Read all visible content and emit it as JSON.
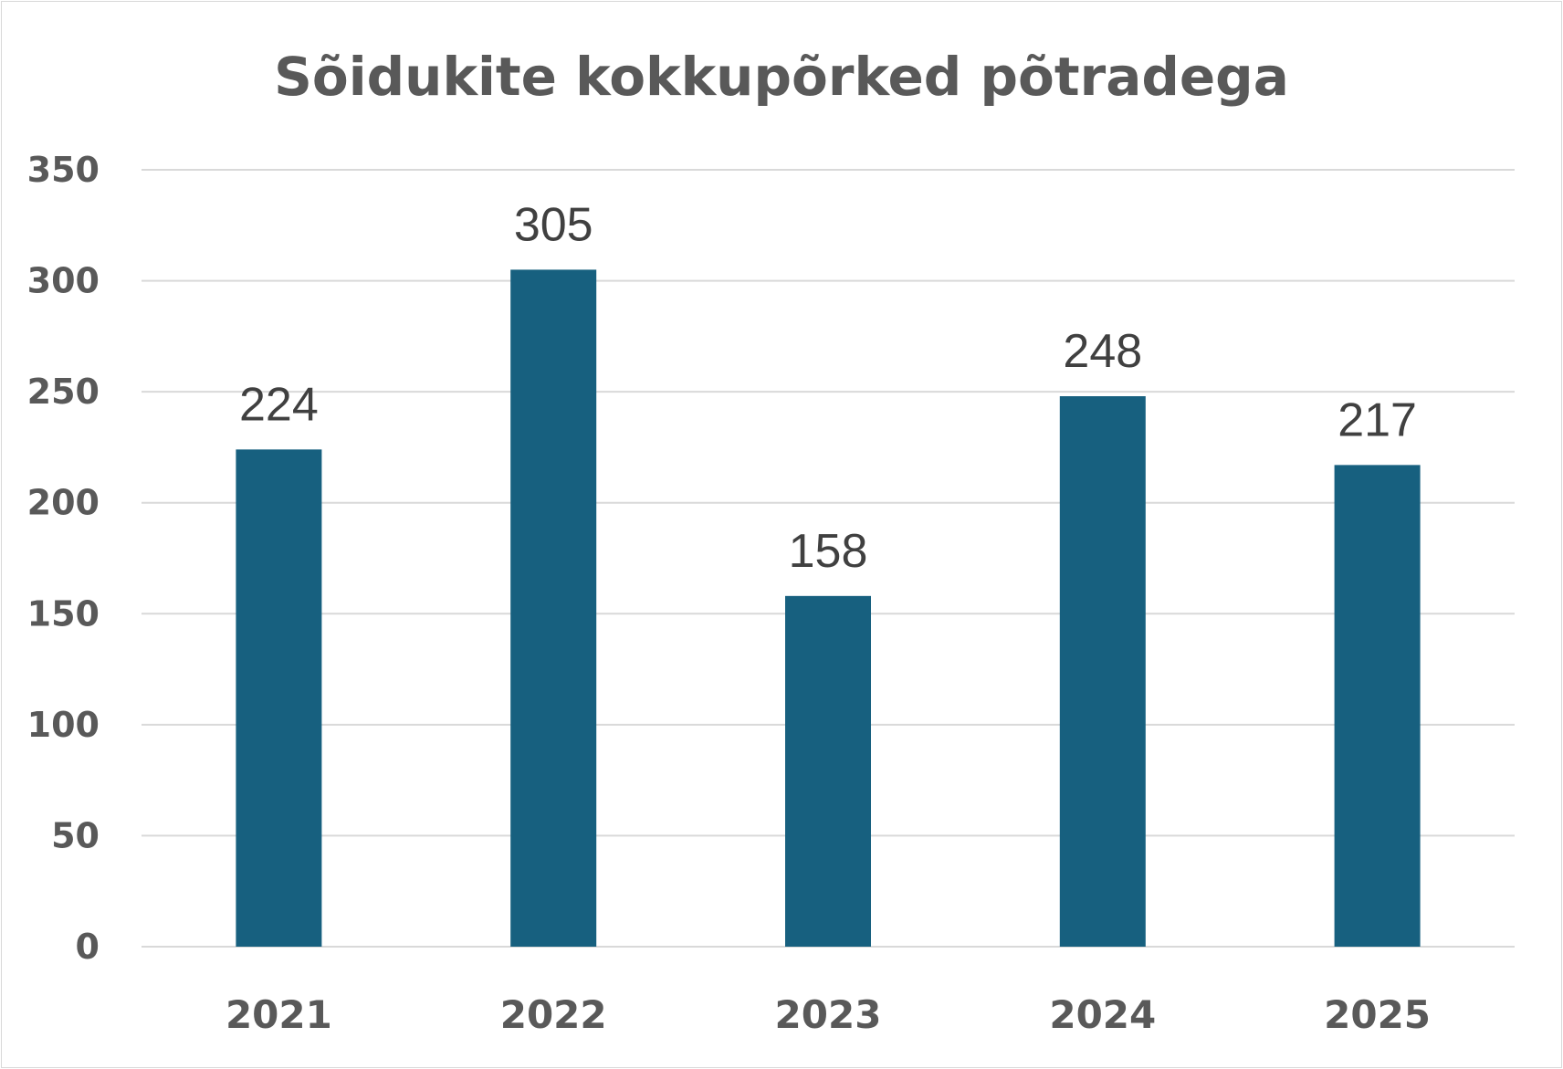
{
  "chart_data": {
    "type": "bar",
    "title": "Sõidukite kokkupõrked põtradega",
    "categories": [
      "2021",
      "2022",
      "2023",
      "2024",
      "2025"
    ],
    "values": [
      224,
      305,
      158,
      248,
      217
    ],
    "xlabel": "",
    "ylabel": "",
    "ylim": [
      0,
      350
    ],
    "yticks": [
      0,
      50,
      100,
      150,
      200,
      250,
      300,
      350
    ],
    "grid": true,
    "legend": "none",
    "bar_color": "#17607f",
    "data_labels": true
  }
}
